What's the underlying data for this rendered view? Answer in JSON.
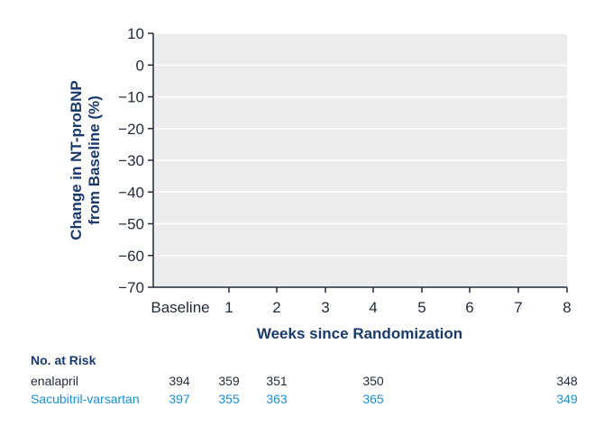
{
  "chart_data": {
    "type": "line",
    "xlabel": "Weeks since Randomization",
    "ylabel": "Change in NT-proBNP from Baseline (%)",
    "ylim": [
      -70,
      10
    ],
    "y_ticks": [
      10,
      0,
      -10,
      -20,
      -30,
      -40,
      -50,
      -60,
      -70
    ],
    "x_ticks": [
      "Baseline",
      "1",
      "2",
      "3",
      "4",
      "5",
      "6",
      "7",
      "8"
    ],
    "grid": "horizontal",
    "series": []
  },
  "risk_table": {
    "title": "No. at Risk",
    "rows": [
      {
        "label": "enalapril",
        "color": "#1f2a3a",
        "values": [
          {
            "week": 0,
            "value": "394"
          },
          {
            "week": 1,
            "value": "359"
          },
          {
            "week": 2,
            "value": "351"
          },
          {
            "week": 4,
            "value": "350"
          },
          {
            "week": 8,
            "value": "348"
          }
        ]
      },
      {
        "label": "Sacubitril-varsartan",
        "color": "#1a8fd6",
        "values": [
          {
            "week": 0,
            "value": "397"
          },
          {
            "week": 1,
            "value": "355"
          },
          {
            "week": 2,
            "value": "363"
          },
          {
            "week": 4,
            "value": "365"
          },
          {
            "week": 8,
            "value": "349"
          }
        ]
      }
    ]
  },
  "colors": {
    "plot_background": "#ececec",
    "gridline": "#ffffff",
    "axis": "#1f2a3a",
    "title_color": "#1a3a6b"
  }
}
